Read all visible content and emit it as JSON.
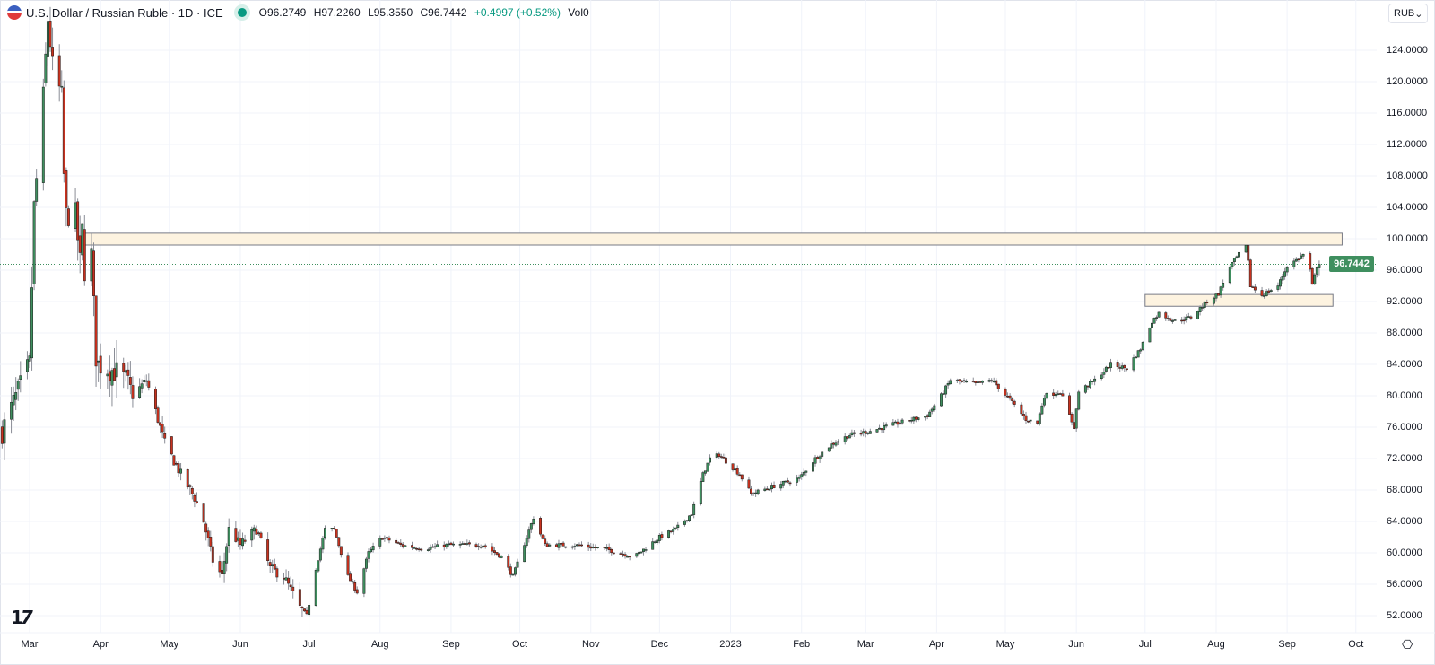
{
  "header": {
    "title": "U.S. Dollar / Russian Ruble · 1D · ICE",
    "open": "O96.2749",
    "high": "H97.2260",
    "low": "L95.3550",
    "close": "C96.7442",
    "change": "+0.4997 (+0.52%)",
    "volume": "Vol0"
  },
  "currency_select": {
    "value": "RUB",
    "chevron": "⌄"
  },
  "last_price_label": "96.7442",
  "settings_icon": "⎔",
  "logo": "TV",
  "colors": {
    "up": "#3f8f5f",
    "down": "#c8321f",
    "zone_fill": "#fdf3e0",
    "zone_border": "#787b86",
    "last_line": "#3f8f5f"
  },
  "chart_data": {
    "type": "candlestick",
    "title": "U.S. Dollar / Russian Ruble · 1D · ICE",
    "ylim": [
      50,
      126
    ],
    "y_ticks": [
      "124.0000",
      "120.0000",
      "116.0000",
      "112.0000",
      "108.0000",
      "104.0000",
      "100.0000",
      "96.0000",
      "92.0000",
      "88.0000",
      "84.0000",
      "80.0000",
      "76.0000",
      "72.0000",
      "68.0000",
      "64.0000",
      "60.0000",
      "56.0000",
      "52.0000"
    ],
    "x_ticks": [
      {
        "label": "Mar",
        "date": "2022-03-01"
      },
      {
        "label": "Apr",
        "date": "2022-04-01"
      },
      {
        "label": "May",
        "date": "2022-05-01"
      },
      {
        "label": "Jun",
        "date": "2022-06-01"
      },
      {
        "label": "Jul",
        "date": "2022-07-01"
      },
      {
        "label": "Aug",
        "date": "2022-08-01"
      },
      {
        "label": "Sep",
        "date": "2022-09-01"
      },
      {
        "label": "Oct",
        "date": "2022-10-01"
      },
      {
        "label": "Nov",
        "date": "2022-11-01"
      },
      {
        "label": "Dec",
        "date": "2022-12-01"
      },
      {
        "label": "2023",
        "date": "2023-01-01"
      },
      {
        "label": "Feb",
        "date": "2023-02-01"
      },
      {
        "label": "Mar",
        "date": "2023-03-01"
      },
      {
        "label": "Apr",
        "date": "2023-04-01"
      },
      {
        "label": "May",
        "date": "2023-05-01"
      },
      {
        "label": "Jun",
        "date": "2023-06-01"
      },
      {
        "label": "Jul",
        "date": "2023-07-01"
      },
      {
        "label": "Aug",
        "date": "2023-08-01"
      },
      {
        "label": "Sep",
        "date": "2023-09-01"
      },
      {
        "label": "Oct",
        "date": "2023-10-01"
      }
    ],
    "last_close": 96.7442,
    "zones": [
      {
        "name": "resistance-zone",
        "from": "2022-03-24",
        "to": "2023-09-25",
        "top": 100.7,
        "bottom": 99.2
      },
      {
        "name": "support-zone",
        "from": "2023-07-01",
        "to": "2023-09-21",
        "top": 92.9,
        "bottom": 91.4
      }
    ],
    "close_keypoints": [
      [
        "2022-02-17",
        75.5
      ],
      [
        "2022-02-24",
        80.5
      ],
      [
        "2022-03-01",
        84
      ],
      [
        "2022-03-03",
        104
      ],
      [
        "2022-03-07",
        118
      ],
      [
        "2022-03-09",
        128
      ],
      [
        "2022-03-11",
        122
      ],
      [
        "2022-03-15",
        118
      ],
      [
        "2022-03-16",
        108
      ],
      [
        "2022-03-17",
        103
      ],
      [
        "2022-03-21",
        103
      ],
      [
        "2022-03-23",
        97
      ],
      [
        "2022-03-24",
        101
      ],
      [
        "2022-03-25",
        96
      ],
      [
        "2022-03-28",
        98
      ],
      [
        "2022-03-30",
        85
      ],
      [
        "2022-03-31",
        84
      ],
      [
        "2022-04-08",
        83
      ],
      [
        "2022-04-12",
        82
      ],
      [
        "2022-04-15",
        80
      ],
      [
        "2022-04-21",
        82
      ],
      [
        "2022-04-25",
        78
      ],
      [
        "2022-04-29",
        74
      ],
      [
        "2022-05-06",
        70
      ],
      [
        "2022-05-12",
        67
      ],
      [
        "2022-05-16",
        64
      ],
      [
        "2022-05-20",
        59
      ],
      [
        "2022-05-24",
        57
      ],
      [
        "2022-05-27",
        63
      ],
      [
        "2022-06-01",
        61
      ],
      [
        "2022-06-08",
        63
      ],
      [
        "2022-06-14",
        58
      ],
      [
        "2022-06-20",
        57
      ],
      [
        "2022-06-27",
        53
      ],
      [
        "2022-06-30",
        52
      ],
      [
        "2022-07-04",
        58
      ],
      [
        "2022-07-08",
        63
      ],
      [
        "2022-07-12",
        63
      ],
      [
        "2022-07-18",
        57
      ],
      [
        "2022-07-22",
        55
      ],
      [
        "2022-07-27",
        60
      ],
      [
        "2022-08-02",
        62
      ],
      [
        "2022-08-10",
        61
      ],
      [
        "2022-08-20",
        60.5
      ],
      [
        "2022-08-30",
        61
      ],
      [
        "2022-09-05",
        61
      ],
      [
        "2022-09-15",
        61
      ],
      [
        "2022-09-23",
        59.5
      ],
      [
        "2022-09-28",
        57
      ],
      [
        "2022-10-04",
        62
      ],
      [
        "2022-10-07",
        64.5
      ],
      [
        "2022-10-12",
        61
      ],
      [
        "2022-10-25",
        61
      ],
      [
        "2022-11-07",
        60.5
      ],
      [
        "2022-11-20",
        59.5
      ],
      [
        "2022-12-01",
        62
      ],
      [
        "2022-12-08",
        63
      ],
      [
        "2022-12-15",
        65
      ],
      [
        "2022-12-20",
        70
      ],
      [
        "2022-12-23",
        72
      ],
      [
        "2022-12-27",
        72.5
      ],
      [
        "2023-01-05",
        70
      ],
      [
        "2023-01-10",
        67.5
      ],
      [
        "2023-01-20",
        68.5
      ],
      [
        "2023-01-31",
        69.5
      ],
      [
        "2023-02-07",
        72
      ],
      [
        "2023-02-14",
        73.8
      ],
      [
        "2023-02-22",
        75
      ],
      [
        "2023-03-03",
        75.5
      ],
      [
        "2023-03-15",
        76.5
      ],
      [
        "2023-03-28",
        77.5
      ],
      [
        "2023-04-03",
        80
      ],
      [
        "2023-04-07",
        82
      ],
      [
        "2023-04-18",
        81.5
      ],
      [
        "2023-04-25",
        82
      ],
      [
        "2023-05-03",
        79.5
      ],
      [
        "2023-05-10",
        77
      ],
      [
        "2023-05-15",
        76.5
      ],
      [
        "2023-05-18",
        80
      ],
      [
        "2023-05-25",
        80.5
      ],
      [
        "2023-05-31",
        76
      ],
      [
        "2023-06-02",
        80.5
      ],
      [
        "2023-06-09",
        82
      ],
      [
        "2023-06-16",
        84
      ],
      [
        "2023-06-23",
        83.5
      ],
      [
        "2023-06-29",
        86
      ],
      [
        "2023-07-04",
        89.5
      ],
      [
        "2023-07-07",
        90.5
      ],
      [
        "2023-07-14",
        89.5
      ],
      [
        "2023-07-21",
        90
      ],
      [
        "2023-07-28",
        92
      ],
      [
        "2023-08-02",
        93
      ],
      [
        "2023-08-07",
        96.5
      ],
      [
        "2023-08-11",
        98
      ],
      [
        "2023-08-14",
        99
      ],
      [
        "2023-08-15",
        97
      ],
      [
        "2023-08-16",
        94
      ],
      [
        "2023-08-21",
        92.8
      ],
      [
        "2023-08-28",
        94
      ],
      [
        "2023-09-01",
        96.5
      ],
      [
        "2023-09-06",
        97.5
      ],
      [
        "2023-09-08",
        98
      ],
      [
        "2023-09-11",
        96
      ],
      [
        "2023-09-12",
        94
      ],
      [
        "2023-09-14",
        96.5
      ],
      [
        "2023-09-15",
        96.7442
      ]
    ]
  }
}
